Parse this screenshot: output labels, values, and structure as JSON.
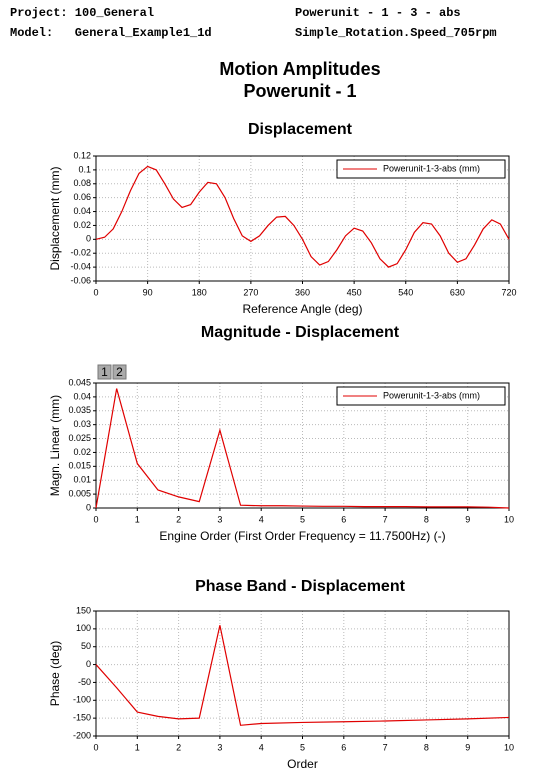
{
  "header": {
    "lines": [
      "Project: 100_General",
      "Powerunit - 1 - 3 - abs",
      "Model:   General_Example1_1d",
      "Simple_Rotation.Speed_705rpm"
    ],
    "title": "Motion Amplitudes",
    "subtitle": "Powerunit - 1"
  },
  "tabs": [
    "1",
    "2"
  ],
  "chart_data": [
    {
      "type": "line",
      "title": "Displacement",
      "x_label": "Reference Angle (deg)",
      "y_label": "Displacement (mm)",
      "x": [
        0,
        15,
        30,
        45,
        60,
        75,
        90,
        105,
        120,
        135,
        150,
        165,
        180,
        195,
        210,
        225,
        240,
        255,
        270,
        285,
        300,
        315,
        330,
        345,
        360,
        375,
        390,
        405,
        420,
        435,
        450,
        465,
        480,
        495,
        510,
        525,
        540,
        555,
        570,
        585,
        600,
        615,
        630,
        645,
        660,
        675,
        690,
        705,
        720
      ],
      "series": [
        {
          "name": "Powerunit-1-3-abs (mm)",
          "color": "#e00000",
          "values": [
            0,
            0.003,
            0.015,
            0.04,
            0.07,
            0.095,
            0.105,
            0.1,
            0.08,
            0.058,
            0.046,
            0.05,
            0.068,
            0.082,
            0.08,
            0.06,
            0.03,
            0.005,
            -0.003,
            0.005,
            0.02,
            0.032,
            0.033,
            0.02,
            0,
            -0.025,
            -0.037,
            -0.032,
            -0.015,
            0.005,
            0.016,
            0.012,
            -0.005,
            -0.028,
            -0.04,
            -0.035,
            -0.015,
            0.01,
            0.024,
            0.022,
            0.005,
            -0.02,
            -0.033,
            -0.028,
            -0.008,
            0.015,
            0.028,
            0.022,
            0
          ]
        }
      ],
      "xlim": [
        0,
        720
      ],
      "xticks": [
        0,
        90,
        180,
        270,
        360,
        450,
        540,
        630,
        720
      ],
      "ylim": [
        -0.06,
        0.12
      ],
      "yticks": [
        0.12,
        0.1,
        0.08,
        0.06,
        0.04,
        0.02,
        0,
        -0.02,
        -0.04,
        -0.06
      ],
      "grid": true,
      "legend": "upper right"
    },
    {
      "type": "line",
      "title": "Magnitude - Displacement",
      "x_label": "Engine Order (First Order Frequency = 11.7500Hz) (-)",
      "y_label": "Magn. Linear (mm)",
      "x": [
        0,
        0.5,
        1,
        1.5,
        2,
        2.5,
        3,
        3.5,
        4,
        4.5,
        5,
        5.5,
        6,
        6.5,
        7,
        7.5,
        8,
        8.5,
        9,
        9.5,
        10
      ],
      "series": [
        {
          "name": "Powerunit-1-3-abs (mm)",
          "color": "#e00000",
          "values": [
            0,
            0.043,
            0.016,
            0.0065,
            0.004,
            0.0023,
            0.028,
            0.001,
            0.0008,
            0.0008,
            0.0007,
            0.0006,
            0.0006,
            0.0005,
            0.0005,
            0.0005,
            0.0004,
            0.0004,
            0.0004,
            0.0003,
            0
          ]
        }
      ],
      "xlim": [
        0,
        10
      ],
      "xticks": [
        0,
        1,
        2,
        3,
        4,
        5,
        6,
        7,
        8,
        9,
        10
      ],
      "ylim": [
        0,
        0.045
      ],
      "yticks": [
        0.045,
        0.04,
        0.035,
        0.03,
        0.025,
        0.02,
        0.015,
        0.01,
        0.005,
        0
      ],
      "grid": true,
      "legend": "upper right"
    },
    {
      "type": "line",
      "title": "Phase Band - Displacement",
      "x_label": "Order",
      "y_label": "Phase (deg)",
      "x": [
        0,
        0.5,
        1,
        1.5,
        2,
        2.5,
        3,
        3.5,
        4,
        5,
        6,
        7,
        8,
        9,
        10
      ],
      "series": [
        {
          "color": "#e00000",
          "values": [
            0,
            -65,
            -133,
            -145,
            -152,
            -150,
            110,
            -170,
            -165,
            -162,
            -160,
            -158,
            -155,
            -152,
            -148
          ]
        }
      ],
      "xlim": [
        0,
        10
      ],
      "xticks": [
        0,
        1,
        2,
        3,
        4,
        5,
        6,
        7,
        8,
        9,
        10
      ],
      "ylim": [
        -200,
        150
      ],
      "yticks": [
        150,
        100,
        50,
        0,
        -50,
        -100,
        -150,
        -200
      ],
      "grid": true
    }
  ]
}
